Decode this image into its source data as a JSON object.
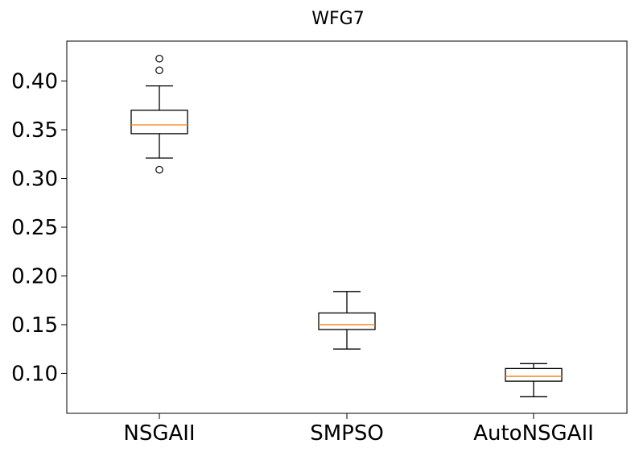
{
  "chart_data": {
    "type": "box",
    "title": "WFG7",
    "xlabel": "",
    "ylabel": "",
    "ylim": [
      0.059,
      0.441
    ],
    "yticks": [
      0.1,
      0.15,
      0.2,
      0.25,
      0.3,
      0.35,
      0.4
    ],
    "ytick_labels": [
      "0.10",
      "0.15",
      "0.20",
      "0.25",
      "0.30",
      "0.35",
      "0.40"
    ],
    "categories": [
      "NSGAII",
      "SMPSO",
      "AutoNSGAII"
    ],
    "boxes": [
      {
        "name": "NSGAII",
        "whisker_low": 0.321,
        "q1": 0.346,
        "median": 0.355,
        "q3": 0.37,
        "whisker_high": 0.395,
        "outliers": [
          0.309,
          0.411,
          0.423
        ]
      },
      {
        "name": "SMPSO",
        "whisker_low": 0.125,
        "q1": 0.145,
        "median": 0.15,
        "q3": 0.162,
        "whisker_high": 0.184,
        "outliers": []
      },
      {
        "name": "AutoNSGAII",
        "whisker_low": 0.076,
        "q1": 0.092,
        "median": 0.097,
        "q3": 0.105,
        "whisker_high": 0.11,
        "outliers": []
      }
    ],
    "grid": false,
    "colors": {
      "box": "#000000",
      "median": "#ff7f0e",
      "outlier": "#000000"
    }
  }
}
